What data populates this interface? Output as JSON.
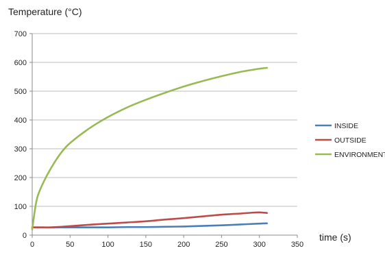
{
  "chart_data": {
    "type": "line",
    "title": "",
    "ylabel": "Temperature (°C)",
    "xlabel": "time (s)",
    "xlim": [
      0,
      350
    ],
    "ylim": [
      0,
      700
    ],
    "xticks": [
      0,
      50,
      100,
      150,
      200,
      250,
      300,
      350
    ],
    "yticks": [
      0,
      100,
      200,
      300,
      400,
      500,
      600,
      700
    ],
    "grid": "horizontal",
    "legend_position": "right",
    "series": [
      {
        "name": "INSIDE",
        "color": "#4a7ebb",
        "x": [
          0,
          10,
          25,
          50,
          75,
          100,
          125,
          150,
          175,
          200,
          225,
          250,
          275,
          300,
          310
        ],
        "y": [
          27,
          27,
          27,
          27,
          27,
          27,
          28,
          28,
          29,
          30,
          32,
          34,
          37,
          40,
          41
        ]
      },
      {
        "name": "OUTSIDE",
        "color": "#be4b48",
        "x": [
          0,
          10,
          25,
          50,
          75,
          100,
          125,
          150,
          175,
          200,
          225,
          250,
          275,
          290,
          300,
          310
        ],
        "y": [
          27,
          27,
          27,
          31,
          36,
          40,
          44,
          48,
          54,
          59,
          65,
          71,
          75,
          78,
          79,
          77
        ]
      },
      {
        "name": "ENVIRONMENT",
        "color": "#98b954",
        "x": [
          0,
          5,
          10,
          20,
          30,
          40,
          50,
          75,
          100,
          125,
          150,
          175,
          200,
          225,
          250,
          275,
          300,
          310
        ],
        "y": [
          20,
          110,
          155,
          210,
          255,
          292,
          320,
          370,
          410,
          443,
          470,
          494,
          516,
          535,
          552,
          567,
          578,
          581
        ]
      }
    ]
  }
}
